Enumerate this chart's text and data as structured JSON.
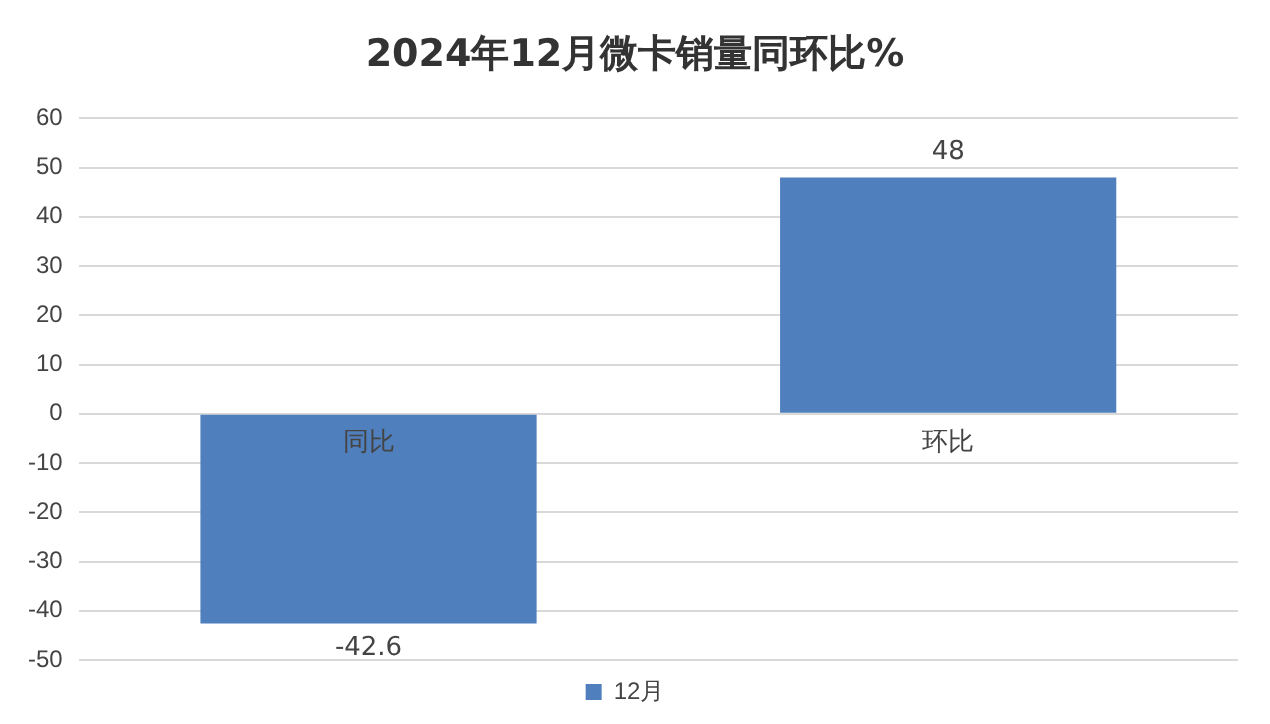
{
  "chart_data": {
    "type": "bar",
    "title": "2024年12月微卡销量同环比%",
    "categories": [
      "同比",
      "环比"
    ],
    "series": [
      {
        "name": "12月",
        "color": "#4f7fbc",
        "values": [
          -42.6,
          48
        ]
      }
    ],
    "ylim": [
      -50,
      60
    ],
    "yticks": [
      -50,
      -40,
      -30,
      -20,
      -10,
      0,
      10,
      20,
      30,
      40,
      50,
      60
    ],
    "grid": "y",
    "legend": "bottom",
    "data_labels": true
  }
}
